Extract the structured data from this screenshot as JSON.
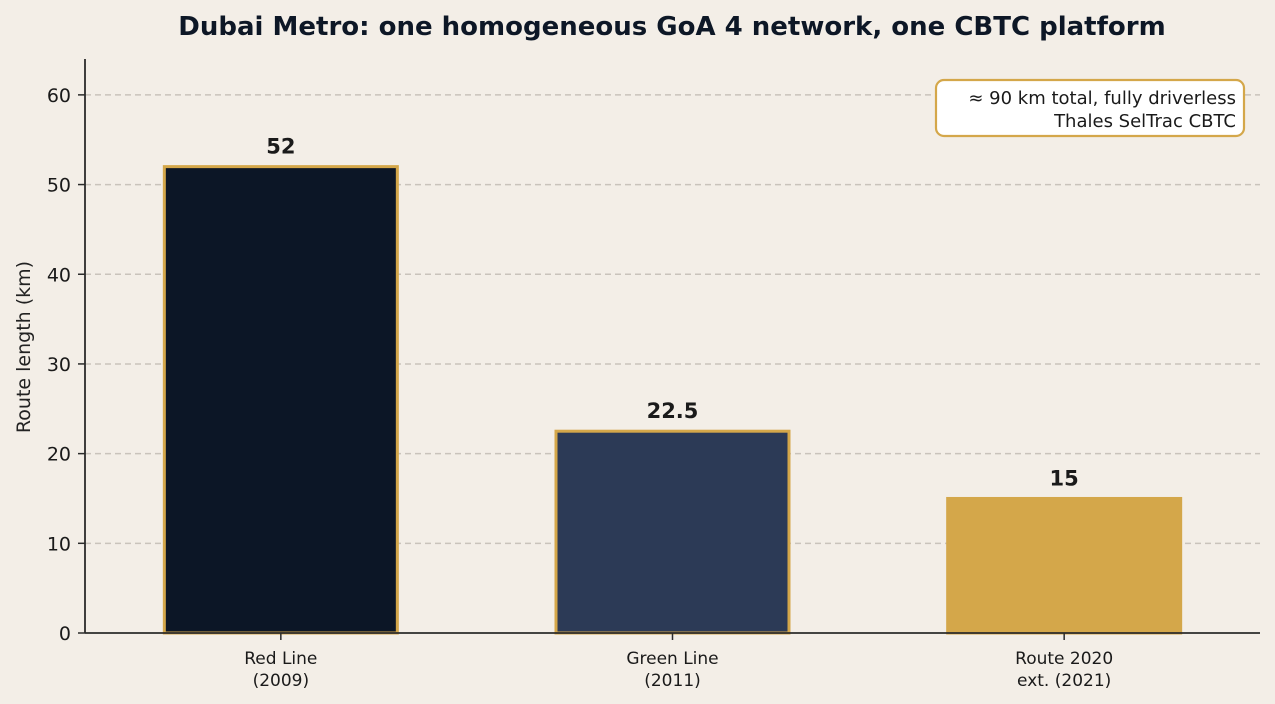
{
  "chart_data": {
    "type": "bar",
    "title": "Dubai Metro: one homogeneous GoA 4 network, one CBTC platform",
    "xlabel": "",
    "ylabel": "Route length (km)",
    "ylim": [
      0,
      64
    ],
    "yticks": [
      0,
      10,
      20,
      30,
      40,
      50,
      60
    ],
    "grid": "y-dashed",
    "categories": [
      [
        "Red Line",
        "(2009)"
      ],
      [
        "Green Line",
        "(2011)"
      ],
      [
        "Route 2020",
        "ext. (2021)"
      ]
    ],
    "values": [
      52,
      22.5,
      15
    ],
    "value_labels": [
      "52",
      "22.5",
      "15"
    ],
    "colors": [
      "#0c1626",
      "#2c3a56",
      "#d4a74a"
    ],
    "edge_color": "#d4a74a",
    "annotation": {
      "lines": [
        "≈ 90 km total, fully driverless",
        "Thales SelTrac CBTC"
      ],
      "placement": "top-right"
    }
  },
  "colors": {
    "background": "#f3eee7",
    "axis": "#2b2b2b",
    "grid": "#c9c3bb",
    "accent": "#d4a74a"
  }
}
